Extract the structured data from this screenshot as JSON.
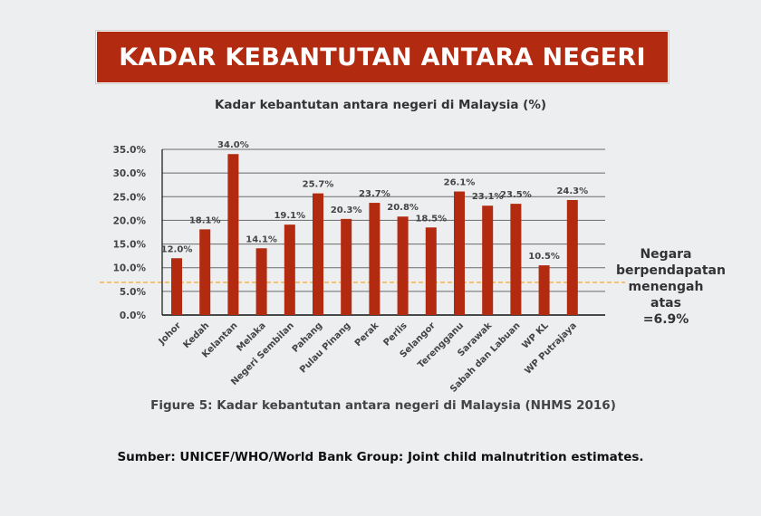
{
  "banner": {
    "title": "KADAR KEBANTUTAN ANTARA NEGERI"
  },
  "chart_data": {
    "type": "bar",
    "title": "Kadar kebantutan antara negeri di Malaysia (%)",
    "xlabel": "",
    "ylabel": "",
    "ylim": [
      0,
      35
    ],
    "yticks": [
      "0.0%",
      "5.0%",
      "10.0%",
      "15.0%",
      "20.0%",
      "25.0%",
      "30.0%",
      "35.0%"
    ],
    "categories": [
      "Johor",
      "Kedah",
      "Kelantan",
      "Melaka",
      "Negeri Sembilan",
      "Pahang",
      "Pulau Pinang",
      "Perak",
      "Perlis",
      "Selangor",
      "Terengganu",
      "Sarawak",
      "Sabah dan Labuan",
      "WP KL",
      "WP Putrajaya"
    ],
    "values": [
      12.0,
      18.1,
      34.0,
      14.1,
      19.1,
      25.7,
      20.3,
      23.7,
      20.8,
      18.5,
      26.1,
      23.1,
      23.5,
      10.5,
      24.3
    ],
    "data_labels": [
      "12.0%",
      "18.1%",
      "34.0%",
      "14.1%",
      "19.1%",
      "25.7%",
      "20.3%",
      "23.7%",
      "20.8%",
      "18.5%",
      "26.1%",
      "23.1%",
      "23.5%",
      "10.5%",
      "24.3%"
    ],
    "bar_color": "#b22a10",
    "grid": true,
    "reference_line": {
      "value": 6.9,
      "color": "#f0a020",
      "label_lines": [
        "Negara",
        "berpendapatan",
        "menengah atas",
        "=6.9%"
      ]
    }
  },
  "caption": "Figure 5: Kadar kebantutan antara negeri di Malaysia (NHMS 2016)",
  "source": "Sumber: UNICEF/WHO/World Bank Group: Joint child malnutrition estimates."
}
